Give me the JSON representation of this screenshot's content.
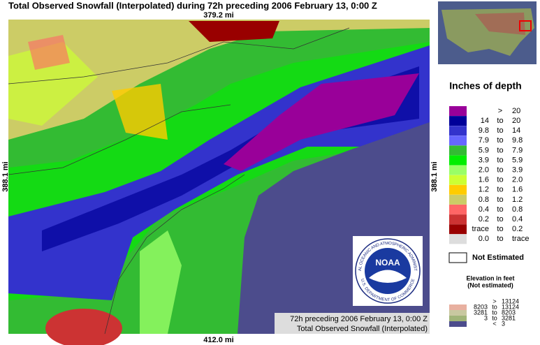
{
  "title": "Total Observed Snowfall (Interpolated) during 72h preceding 2006 February 13, 0:00 Z",
  "scale": {
    "top": "379.2 mi",
    "left": "388.1 mi",
    "right": "388.1 mi",
    "bottom": "412.0 mi"
  },
  "caption": {
    "line1": "72h preceding 2006 February 13, 0:00 Z",
    "line2": "Total Observed Snowfall (Interpolated)"
  },
  "logo": {
    "center": "NOAA",
    "upper": "NATIONAL OCEANIC AND ATMOSPHERIC ADMINISTRATION",
    "lower": "U.S. DEPARTMENT OF COMMERCE"
  },
  "legend": {
    "title": "Inches of depth",
    "rows": [
      {
        "sep": ">",
        "high": "20",
        "color": "#990099"
      },
      {
        "low": "14",
        "sep": "to",
        "high": "20",
        "color": "#000099"
      },
      {
        "low": "9.8",
        "sep": "to",
        "high": "14",
        "color": "#3333cc"
      },
      {
        "low": "7.9",
        "sep": "to",
        "high": "9.8",
        "color": "#6666ff"
      },
      {
        "low": "5.9",
        "sep": "to",
        "high": "7.9",
        "color": "#33bb33"
      },
      {
        "low": "3.9",
        "sep": "to",
        "high": "5.9",
        "color": "#00ee00"
      },
      {
        "low": "2.0",
        "sep": "to",
        "high": "3.9",
        "color": "#99ff66"
      },
      {
        "low": "1.6",
        "sep": "to",
        "high": "2.0",
        "color": "#ccff33"
      },
      {
        "low": "1.2",
        "sep": "to",
        "high": "1.6",
        "color": "#ffcc00"
      },
      {
        "low": "0.8",
        "sep": "to",
        "high": "1.2",
        "color": "#cccc66"
      },
      {
        "low": "0.4",
        "sep": "to",
        "high": "0.8",
        "color": "#ff6666"
      },
      {
        "low": "0.2",
        "sep": "to",
        "high": "0.4",
        "color": "#cc3333"
      },
      {
        "low": "trace",
        "sep": "to",
        "high": "0.2",
        "color": "#990000"
      },
      {
        "low": "0.0",
        "sep": "to",
        "high": "trace",
        "color": "#dddddd"
      }
    ],
    "not_estimated": "Not Estimated"
  },
  "elevation": {
    "title": "Elevation in feet",
    "subtitle": "(Not estimated)",
    "rows": [
      {
        "sep": ">",
        "high": "13124",
        "color": "#ffffff"
      },
      {
        "low": "8203",
        "sep": "to",
        "high": "13124",
        "color": "#e8b0a0"
      },
      {
        "low": "3281",
        "sep": "to",
        "high": "8203",
        "color": "#c8c8a0"
      },
      {
        "low": "3",
        "sep": "to",
        "high": "3281",
        "color": "#a0b478"
      },
      {
        "sep": "<",
        "high": "3",
        "color": "#4c4c8c"
      }
    ]
  }
}
